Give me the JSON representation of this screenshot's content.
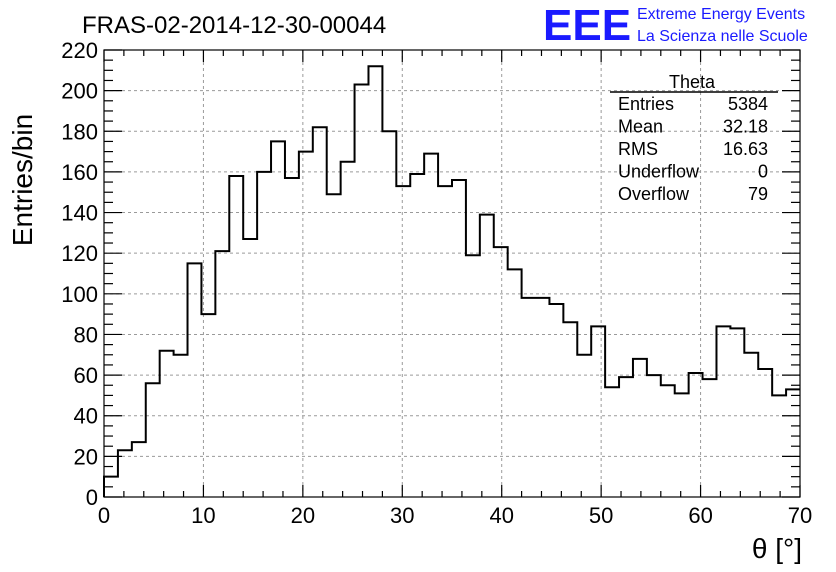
{
  "chart_data": {
    "type": "histogram",
    "title": "FRAS-02-2014-12-30-00044",
    "xlabel": "θ [°]",
    "ylabel": "Entries/bin",
    "xlim": [
      0,
      70
    ],
    "ylim": [
      0,
      220
    ],
    "x_ticks": [
      0,
      10,
      20,
      30,
      40,
      50,
      60,
      70
    ],
    "y_ticks": [
      0,
      20,
      40,
      60,
      80,
      100,
      120,
      140,
      160,
      180,
      200,
      220
    ],
    "grid": true,
    "bin_width": 1.4,
    "bin_edges_start": 0,
    "values": [
      10,
      23,
      27,
      56,
      72,
      70,
      115,
      90,
      121,
      158,
      127,
      160,
      175,
      157,
      170,
      182,
      149,
      165,
      203,
      212,
      180,
      153,
      159,
      169,
      153,
      156,
      119,
      139,
      123,
      112,
      98,
      98,
      95,
      86,
      70,
      84,
      54,
      59,
      68,
      60,
      55,
      51,
      61,
      58,
      84,
      83,
      71,
      63,
      50,
      53
    ],
    "stats_box": {
      "name": "Theta",
      "rows": [
        {
          "label": "Entries",
          "value": "5384"
        },
        {
          "label": "Mean",
          "value": "32.18"
        },
        {
          "label": "RMS",
          "value": "16.63"
        },
        {
          "label": "Underflow",
          "value": "0"
        },
        {
          "label": "Overflow",
          "value": "79"
        }
      ]
    }
  },
  "logo": {
    "mark": "EEE",
    "line1": "Extreme Energy Events",
    "line2": "La Scienza nelle Scuole",
    "color": "#1a1aff"
  }
}
